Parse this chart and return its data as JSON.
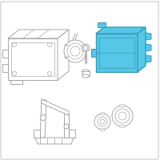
{
  "background_color": "#ffffff",
  "border_color": "#cccccc",
  "line_color": "#999999",
  "highlight_fill": "#55c8e8",
  "highlight_edge": "#3a9ab5",
  "fig_size": [
    2.0,
    2.0
  ],
  "dpi": 100,
  "line_width": 0.6
}
